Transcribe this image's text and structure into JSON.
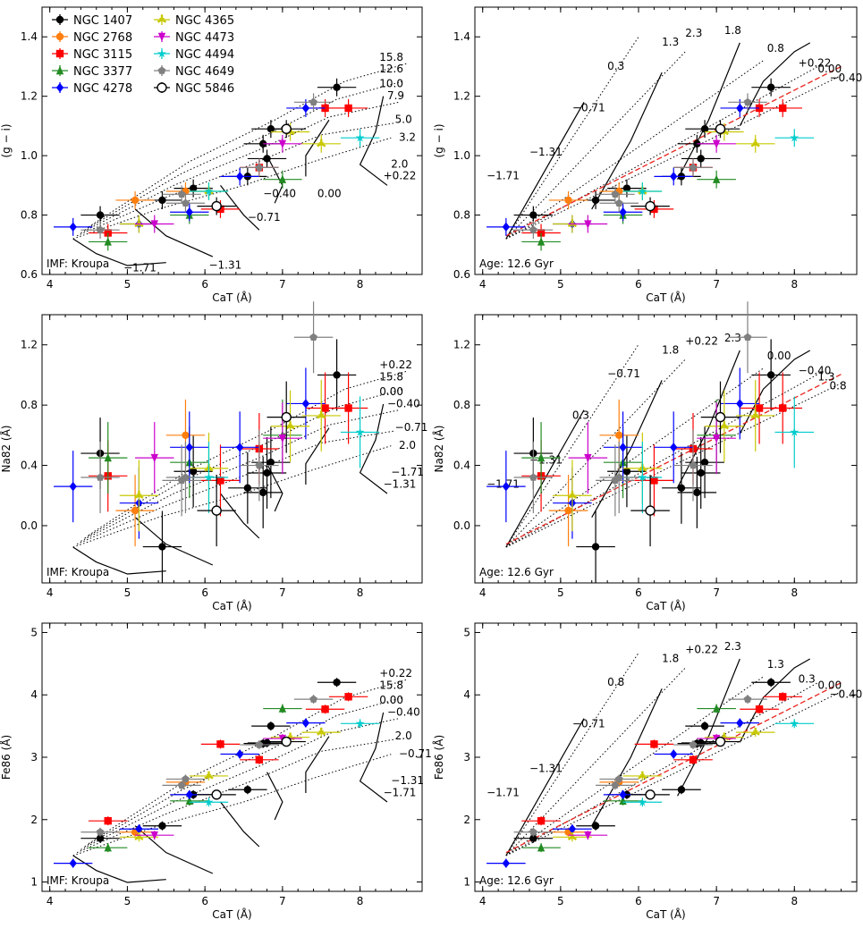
{
  "legend": {
    "entries": [
      {
        "name": "NGC 1407",
        "color": "#000000",
        "marker": "circle"
      },
      {
        "name": "NGC 2768",
        "color": "#ff7f0e",
        "marker": "circle"
      },
      {
        "name": "NGC 3115",
        "color": "#ff0000",
        "marker": "square"
      },
      {
        "name": "NGC 3377",
        "color": "#228b22",
        "marker": "triangle-up"
      },
      {
        "name": "NGC 4278",
        "color": "#0000ff",
        "marker": "diamond"
      },
      {
        "name": "NGC 4365",
        "color": "#c8c800",
        "marker": "tri-star"
      },
      {
        "name": "NGC 4473",
        "color": "#cc00cc",
        "marker": "triangle-down"
      },
      {
        "name": "NGC 4494",
        "color": "#00cccc",
        "marker": "star"
      },
      {
        "name": "NGC 4649",
        "color": "#808080",
        "marker": "pentagon"
      },
      {
        "name": "NGC 5846",
        "color": "#000000",
        "marker": "open-circle"
      }
    ]
  },
  "chart_data": [
    {
      "type": "scatter",
      "panel": "top-left",
      "xlabel": "CaT (Å)",
      "ylabel": "(g − i)",
      "xlim": [
        3.9,
        8.8
      ],
      "ylim": [
        0.6,
        1.5
      ],
      "xticks": [
        "4",
        "5",
        "6",
        "7",
        "8"
      ],
      "yticks": [
        "0.6",
        "0.8",
        "1.0",
        "1.2",
        "1.4"
      ],
      "annotation": "IMF: Kroupa",
      "grid_labels": [
        "15.8",
        "12.6",
        "10.0",
        "7.9",
        "5.0",
        "3.2",
        "2.0",
        "+0.22",
        "0.00",
        "−0.40",
        "−0.71",
        "−1.31",
        "−1.71"
      ]
    },
    {
      "type": "scatter",
      "panel": "top-right",
      "xlabel": "CaT (Å)",
      "ylabel": "(g − i)",
      "xlim": [
        3.9,
        8.8
      ],
      "ylim": [
        0.6,
        1.5
      ],
      "xticks": [
        "4",
        "5",
        "6",
        "7",
        "8"
      ],
      "yticks": [
        "0.6",
        "0.8",
        "1.0",
        "1.2",
        "1.4"
      ],
      "annotation": "Age: 12.6 Gyr",
      "grid_labels": [
        "2.3",
        "1.8",
        "1.3",
        "0.8",
        "0.3",
        "+0.22",
        "0.00",
        "−0.40",
        "−0.71",
        "−1.31",
        "−1.71"
      ]
    },
    {
      "type": "scatter",
      "panel": "middle-left",
      "xlabel": "CaT (Å)",
      "ylabel": "Na82 (Å)",
      "xlim": [
        3.9,
        8.8
      ],
      "ylim": [
        -0.38,
        1.4
      ],
      "xticks": [
        "4",
        "5",
        "6",
        "7",
        "8"
      ],
      "yticks": [
        "0.0",
        "0.4",
        "0.8",
        "1.2"
      ],
      "annotation": "IMF: Kroupa",
      "grid_labels": [
        "+0.22",
        "15.8",
        "0.00",
        "−0.40",
        "−0.71",
        "2.0",
        "−1.71",
        "−1.31"
      ]
    },
    {
      "type": "scatter",
      "panel": "middle-right",
      "xlabel": "CaT (Å)",
      "ylabel": "Na82 (Å)",
      "xlim": [
        3.9,
        8.8
      ],
      "ylim": [
        -0.38,
        1.4
      ],
      "xticks": [
        "4",
        "5",
        "6",
        "7",
        "8"
      ],
      "yticks": [
        "0.0",
        "0.4",
        "0.8",
        "1.2"
      ],
      "annotation": "Age: 12.6 Gyr",
      "grid_labels": [
        "+0.22",
        "2.3",
        "1.8",
        "0.00",
        "−0.71",
        "−0.40",
        "1.3",
        "0.8",
        "0.3",
        "−1.31",
        "−1.71"
      ]
    },
    {
      "type": "scatter",
      "panel": "bottom-left",
      "xlabel": "CaT (Å)",
      "ylabel": "Fe86 (Å)",
      "xlim": [
        3.9,
        8.8
      ],
      "ylim": [
        0.85,
        5.15
      ],
      "xticks": [
        "4",
        "5",
        "6",
        "7",
        "8"
      ],
      "yticks": [
        "1",
        "2",
        "3",
        "4",
        "5"
      ],
      "annotation": "IMF: Kroupa",
      "grid_labels": [
        "+0.22",
        "15.8",
        "0.00",
        "−0.40",
        "2.0",
        "−0.71",
        "−1.31",
        "−1.71"
      ]
    },
    {
      "type": "scatter",
      "panel": "bottom-right",
      "xlabel": "CaT (Å)",
      "ylabel": "Fe86 (Å)",
      "xlim": [
        3.9,
        8.8
      ],
      "ylim": [
        0.85,
        5.15
      ],
      "xticks": [
        "4",
        "5",
        "6",
        "7",
        "8"
      ],
      "yticks": [
        "1",
        "2",
        "3",
        "4",
        "5"
      ],
      "annotation": "Age: 12.6 Gyr",
      "grid_labels": [
        "+0.22",
        "2.3",
        "1.8",
        "1.3",
        "0.8",
        "0.3",
        "0.00",
        "−0.40",
        "−0.71",
        "−1.31",
        "−1.71"
      ]
    }
  ],
  "points": {
    "cat": [
      7.7,
      6.85,
      5.85,
      5.45,
      4.65,
      6.55,
      6.8,
      6.75,
      5.1,
      5.75,
      4.75,
      7.85,
      7.55,
      6.7,
      6.2,
      4.75,
      5.8,
      7.0,
      4.3,
      5.8,
      5.15,
      6.45,
      7.3,
      5.15,
      7.5,
      6.05,
      7.1,
      5.35,
      7.0,
      8.0,
      6.05,
      7.4,
      4.65,
      5.75,
      6.7,
      5.7,
      7.05,
      6.15
    ],
    "gi": [
      1.23,
      1.09,
      0.89,
      0.85,
      0.8,
      0.93,
      0.99,
      1.04,
      0.85,
      0.88,
      0.74,
      1.16,
      1.16,
      0.96,
      0.82,
      0.71,
      0.8,
      0.92,
      0.76,
      0.81,
      0.77,
      0.93,
      1.16,
      0.77,
      1.04,
      0.88,
      1.08,
      0.77,
      1.04,
      1.06,
      0.88,
      1.18,
      0.75,
      0.84,
      0.96,
      0.87,
      1.09,
      0.83
    ],
    "na82": [
      1.0,
      0.42,
      0.36,
      -0.14,
      0.48,
      0.25,
      0.35,
      0.22,
      0.1,
      0.6,
      0.33,
      0.78,
      0.78,
      0.51,
      0.3,
      0.45,
      0.42,
      0.6,
      0.26,
      0.52,
      0.15,
      0.52,
      0.81,
      0.2,
      0.73,
      0.38,
      0.66,
      0.45,
      0.58,
      0.62,
      0.32,
      1.25,
      0.32,
      0.32,
      0.4,
      0.3,
      0.72,
      0.1
    ],
    "fe86": [
      4.2,
      3.5,
      2.4,
      1.9,
      1.7,
      2.48,
      3.23,
      3.22,
      1.8,
      2.6,
      1.98,
      3.97,
      3.77,
      2.96,
      3.21,
      1.55,
      2.3,
      3.78,
      1.3,
      2.4,
      1.85,
      3.05,
      3.55,
      1.72,
      3.4,
      2.7,
      3.32,
      1.75,
      3.3,
      3.54,
      2.28,
      3.93,
      1.8,
      2.65,
      3.2,
      2.55,
      3.25,
      2.4
    ],
    "gal": [
      0,
      0,
      0,
      0,
      0,
      0,
      0,
      0,
      1,
      1,
      2,
      2,
      2,
      2,
      2,
      3,
      3,
      3,
      4,
      4,
      4,
      4,
      4,
      5,
      5,
      5,
      5,
      6,
      6,
      7,
      7,
      8,
      8,
      8,
      8,
      8,
      9,
      9
    ]
  }
}
